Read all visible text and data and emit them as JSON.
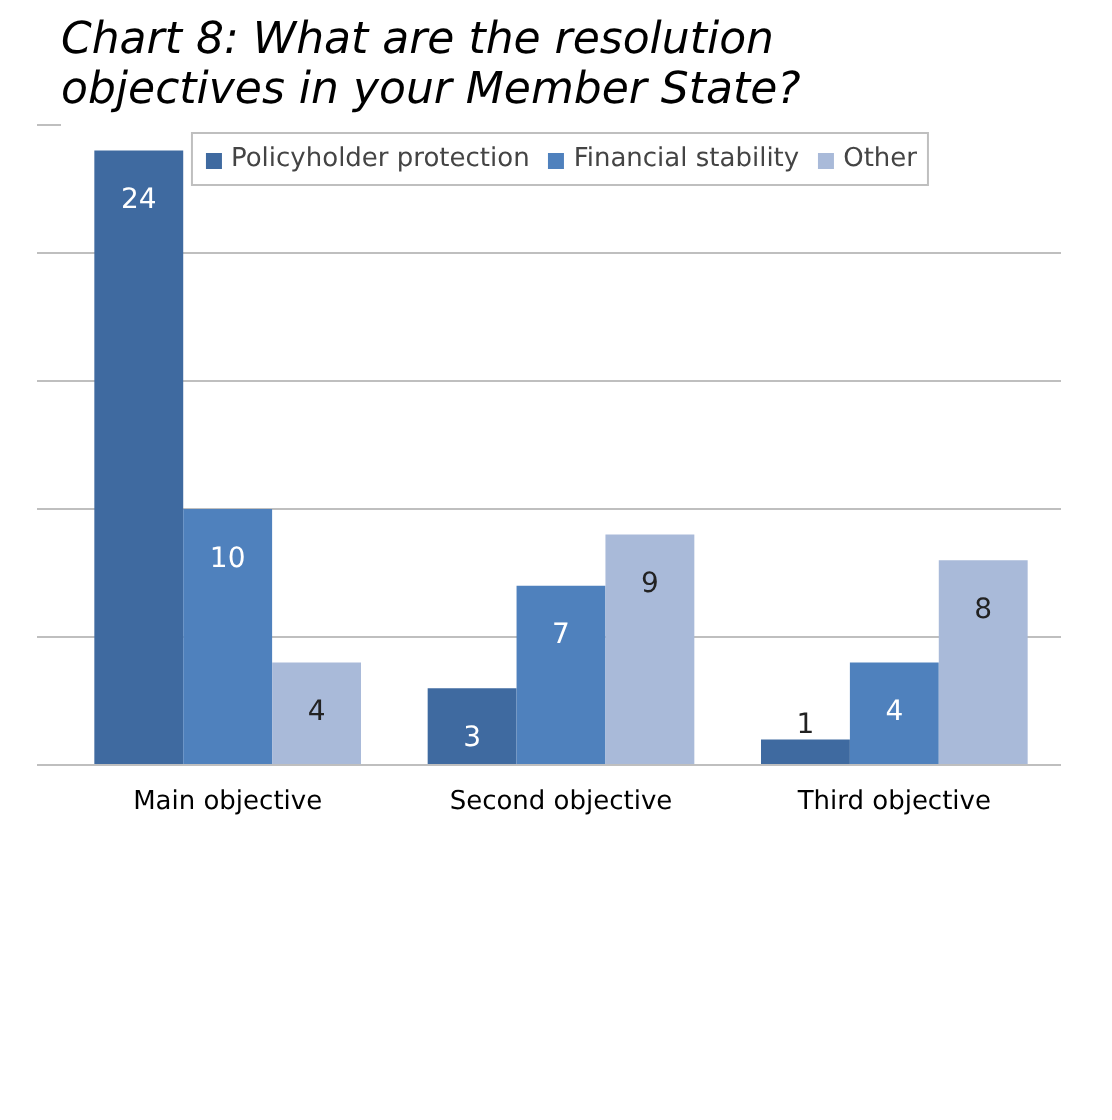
{
  "chart_data": {
    "type": "bar",
    "title": "Chart 8: What are the resolution objectives in your Member State?",
    "categories": [
      "Main objective",
      "Second objective",
      "Third objective"
    ],
    "series": [
      {
        "name": "Policyholder protection",
        "color": "#3f6aa0",
        "values": [
          24,
          3,
          1
        ]
      },
      {
        "name": "Financial stability",
        "color": "#4f81bd",
        "values": [
          10,
          7,
          4
        ]
      },
      {
        "name": "Other",
        "color": "#a9bad9",
        "values": [
          4,
          9,
          8
        ]
      }
    ],
    "ylim": [
      0,
      25
    ],
    "yticks": [
      {
        "value": 0,
        "label": null
      },
      {
        "value": 5,
        "label": null
      },
      {
        "value": 10,
        "label": null
      },
      {
        "value": 15,
        "label": null
      },
      {
        "value": 20,
        "label": null
      },
      {
        "value": 25,
        "label": null
      }
    ],
    "tick_labels": "x",
    "grid": "y",
    "legend": "top",
    "data_labels": true
  }
}
